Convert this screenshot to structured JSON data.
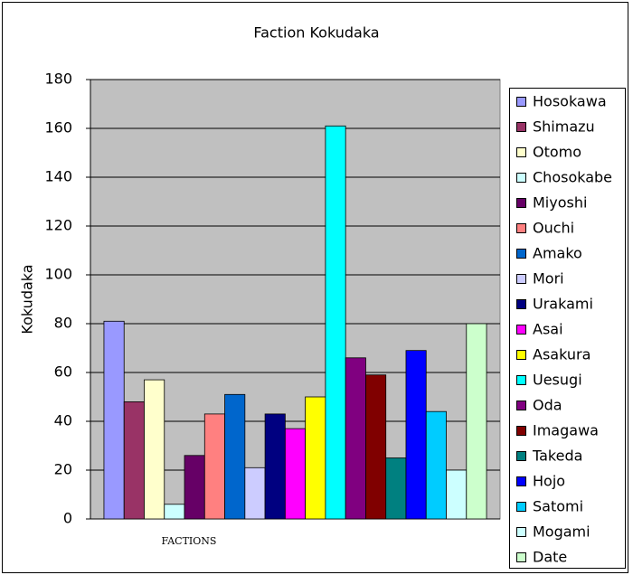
{
  "chart_data": {
    "type": "bar",
    "title": "Faction Kokudaka",
    "y_label": "Kokudaka",
    "categories": [
      "FACTIONS"
    ],
    "series": [
      {
        "name": "Hosokawa",
        "color": "#9999ff",
        "values": [
          81
        ]
      },
      {
        "name": "Shimazu",
        "color": "#993366",
        "values": [
          48
        ]
      },
      {
        "name": "Otomo",
        "color": "#ffffcc",
        "values": [
          57
        ]
      },
      {
        "name": "Chosokabe",
        "color": "#ccffff",
        "values": [
          6
        ]
      },
      {
        "name": "Miyoshi",
        "color": "#660066",
        "values": [
          26
        ]
      },
      {
        "name": "Ouchi",
        "color": "#ff8080",
        "values": [
          43
        ]
      },
      {
        "name": "Amako",
        "color": "#0066cc",
        "values": [
          51
        ]
      },
      {
        "name": "Mori",
        "color": "#ccccff",
        "values": [
          21
        ]
      },
      {
        "name": "Urakami",
        "color": "#000080",
        "values": [
          43
        ]
      },
      {
        "name": "Asai",
        "color": "#ff00ff",
        "values": [
          37
        ]
      },
      {
        "name": "Asakura",
        "color": "#ffff00",
        "values": [
          50
        ]
      },
      {
        "name": "Uesugi",
        "color": "#00ffff",
        "values": [
          161
        ]
      },
      {
        "name": "Oda",
        "color": "#800080",
        "values": [
          66
        ]
      },
      {
        "name": "Imagawa",
        "color": "#800000",
        "values": [
          59
        ]
      },
      {
        "name": "Takeda",
        "color": "#008080",
        "values": [
          25
        ]
      },
      {
        "name": "Hojo",
        "color": "#0000ff",
        "values": [
          69
        ]
      },
      {
        "name": "Satomi",
        "color": "#00ccff",
        "values": [
          44
        ]
      },
      {
        "name": "Mogami",
        "color": "#ccffff",
        "values": [
          20
        ]
      },
      {
        "name": "Date",
        "color": "#ccffcc",
        "values": [
          80
        ]
      }
    ],
    "ylim": [
      0,
      180
    ],
    "yticks": [
      0,
      20,
      40,
      60,
      80,
      100,
      120,
      140,
      160,
      180
    ],
    "grid": true,
    "legend": "right"
  }
}
